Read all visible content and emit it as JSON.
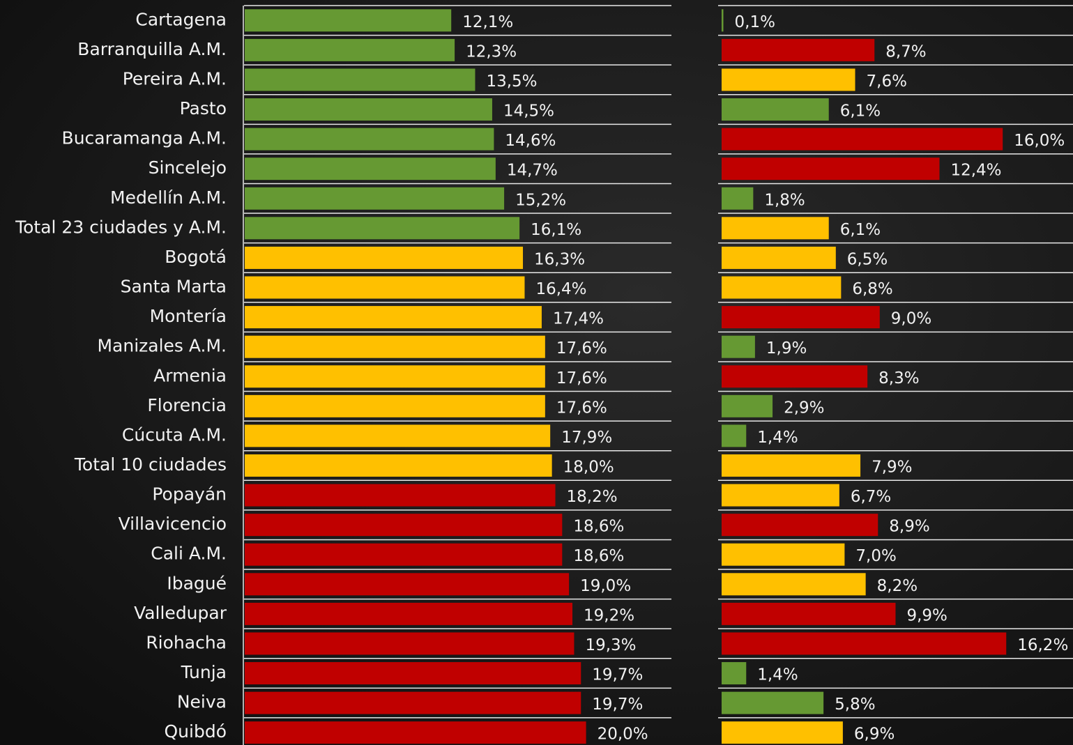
{
  "chart_data": [
    {
      "type": "bar",
      "orientation": "horizontal",
      "categories": [
        "Cartagena",
        "Barranquilla A.M.",
        "Pereira A.M.",
        "Pasto",
        "Bucaramanga A.M.",
        "Sincelejo",
        "Medellín A.M.",
        "Total 23 ciudades y A.M.",
        "Bogotá",
        "Santa Marta",
        "Montería",
        "Manizales A.M.",
        "Armenia",
        "Florencia",
        "Cúcuta A.M.",
        "Total 10 ciudades",
        "Popayán",
        "Villavicencio",
        "Cali A.M.",
        "Ibagué",
        "Valledupar",
        "Riohacha",
        "Tunja",
        "Neiva",
        "Quibdó"
      ],
      "values": [
        12.1,
        12.3,
        13.5,
        14.5,
        14.6,
        14.7,
        15.2,
        16.1,
        16.3,
        16.4,
        17.4,
        17.6,
        17.6,
        17.6,
        17.9,
        18.0,
        18.2,
        18.6,
        18.6,
        19.0,
        19.2,
        19.3,
        19.7,
        19.7,
        20.0
      ],
      "value_labels": [
        "12,1%",
        "12,3%",
        "13,5%",
        "14,5%",
        "14,6%",
        "14,7%",
        "15,2%",
        "16,1%",
        "16,3%",
        "16,4%",
        "17,4%",
        "17,6%",
        "17,6%",
        "17,6%",
        "17,9%",
        "18,0%",
        "18,2%",
        "18,6%",
        "18,6%",
        "19,0%",
        "19,2%",
        "19,3%",
        "19,7%",
        "19,7%",
        "20,0%"
      ],
      "colors": [
        "#669933",
        "#669933",
        "#669933",
        "#669933",
        "#669933",
        "#669933",
        "#669933",
        "#669933",
        "#ffc000",
        "#ffc000",
        "#ffc000",
        "#ffc000",
        "#ffc000",
        "#ffc000",
        "#ffc000",
        "#ffc000",
        "#c00000",
        "#c00000",
        "#c00000",
        "#c00000",
        "#c00000",
        "#c00000",
        "#c00000",
        "#c00000",
        "#c00000"
      ],
      "xlim": [
        0,
        25
      ]
    },
    {
      "type": "bar",
      "orientation": "horizontal",
      "values": [
        0.1,
        8.7,
        7.6,
        6.1,
        16.0,
        12.4,
        1.8,
        6.1,
        6.5,
        6.8,
        9.0,
        1.9,
        8.3,
        2.9,
        1.4,
        7.9,
        6.7,
        8.9,
        7.0,
        8.2,
        9.9,
        16.2,
        1.4,
        5.8,
        6.9
      ],
      "value_labels": [
        "0,1%",
        "8,7%",
        "7,6%",
        "6,1%",
        "16,0%",
        "12,4%",
        "1,8%",
        "6,1%",
        "6,5%",
        "6,8%",
        "9,0%",
        "1,9%",
        "8,3%",
        "2,9%",
        "1,4%",
        "7,9%",
        "6,7%",
        "8,9%",
        "7,0%",
        "8,2%",
        "9,9%",
        "16,2%",
        "1,4%",
        "5,8%",
        "6,9%"
      ],
      "colors": [
        "#669933",
        "#c00000",
        "#ffc000",
        "#669933",
        "#c00000",
        "#c00000",
        "#669933",
        "#ffc000",
        "#ffc000",
        "#ffc000",
        "#c00000",
        "#669933",
        "#c00000",
        "#669933",
        "#669933",
        "#ffc000",
        "#ffc000",
        "#c00000",
        "#ffc000",
        "#ffc000",
        "#c00000",
        "#c00000",
        "#669933",
        "#669933",
        "#ffc000"
      ],
      "xlim": [
        0,
        20
      ]
    }
  ]
}
